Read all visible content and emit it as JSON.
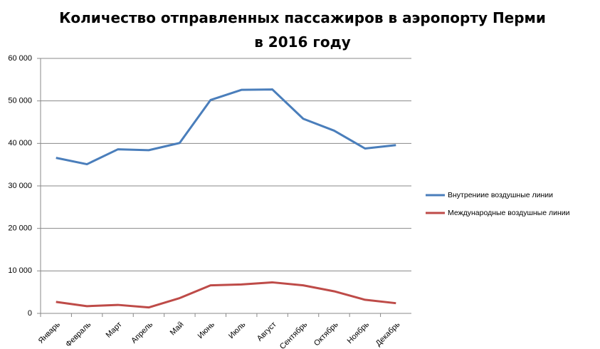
{
  "chart_data": {
    "type": "line",
    "title": "Количество отправленных пассажиров в аэропорту Перми в 2016 году",
    "categories": [
      "Январь",
      "Февраль",
      "Март",
      "Апрель",
      "Май",
      "Июнь",
      "Июль",
      "Август",
      "Сентябрь",
      "Октябрь",
      "Ноябрь",
      "Декабрь"
    ],
    "series": [
      {
        "name": "Внутрениие воздушные линии",
        "color": "#4a7ebb",
        "values": [
          36600,
          35100,
          38600,
          38400,
          40100,
          50200,
          52600,
          52700,
          45800,
          43000,
          38800,
          39600
        ]
      },
      {
        "name": "Международные воздушные линии",
        "color": "#be4b48",
        "values": [
          2700,
          1700,
          2000,
          1400,
          3600,
          6600,
          6800,
          7300,
          6600,
          5200,
          3200,
          2400
        ]
      }
    ],
    "ylim": [
      0,
      60000
    ],
    "yticks": [
      0,
      {
        "value": 10000,
        "label": "10 000"
      },
      {
        "value": 20000,
        "label": "20 000"
      },
      {
        "value": 30000,
        "label": "30 000"
      },
      {
        "value": 40000,
        "label": "40 000"
      },
      {
        "value": 50000,
        "label": "50 000"
      },
      {
        "value": 60000,
        "label": "60 000"
      }
    ],
    "grid": true,
    "legend": "right"
  }
}
